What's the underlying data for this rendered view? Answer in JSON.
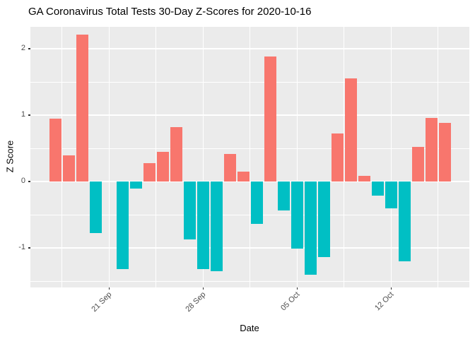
{
  "chart_data": {
    "type": "bar",
    "title": "GA Coronavirus Total Tests 30-Day Z-Scores for 2020-10-16",
    "xlabel": "Date",
    "ylabel": "Z Score",
    "x": [
      "2020-09-17",
      "2020-09-18",
      "2020-09-19",
      "2020-09-20",
      "2020-09-21",
      "2020-09-22",
      "2020-09-23",
      "2020-09-24",
      "2020-09-25",
      "2020-09-26",
      "2020-09-27",
      "2020-09-28",
      "2020-09-29",
      "2020-09-30",
      "2020-10-01",
      "2020-10-02",
      "2020-10-03",
      "2020-10-04",
      "2020-10-05",
      "2020-10-06",
      "2020-10-07",
      "2020-10-08",
      "2020-10-09",
      "2020-10-10",
      "2020-10-11",
      "2020-10-12",
      "2020-10-13",
      "2020-10-14",
      "2020-10-15",
      "2020-10-16"
    ],
    "values": [
      0.95,
      0.39,
      2.21,
      -0.78,
      0.0,
      -1.32,
      -0.11,
      0.28,
      0.45,
      0.82,
      -0.87,
      -1.32,
      -1.35,
      0.42,
      0.15,
      -0.64,
      1.88,
      -0.44,
      -1.01,
      -1.4,
      -1.14,
      0.72,
      1.55,
      0.08,
      -0.21,
      -0.4,
      -1.2,
      0.52,
      0.96,
      0.88
    ],
    "x_tick_labels": [
      "21 Sep",
      "28 Sep",
      "05 Oct",
      "12 Oct"
    ],
    "x_tick_dates": [
      "2020-09-21",
      "2020-09-28",
      "2020-10-05",
      "2020-10-12"
    ],
    "y_ticks": [
      -1,
      0,
      1,
      2
    ],
    "y_tick_labels": [
      "-1",
      "0",
      "1",
      "2"
    ],
    "y_minor_ticks": [
      -1.5,
      -0.5,
      0.5,
      1.5
    ],
    "ylim": [
      -1.596,
      2.33
    ],
    "grid": true,
    "legend": "none",
    "colors": {
      "positive_bar": "#F8766D",
      "negative_bar": "#00BFC4",
      "panel_background": "#EBEBEB",
      "gridline": "#FFFFFF",
      "tick_label": "#4D4D4D",
      "axis_title": "#000000",
      "title": "#000000"
    }
  }
}
